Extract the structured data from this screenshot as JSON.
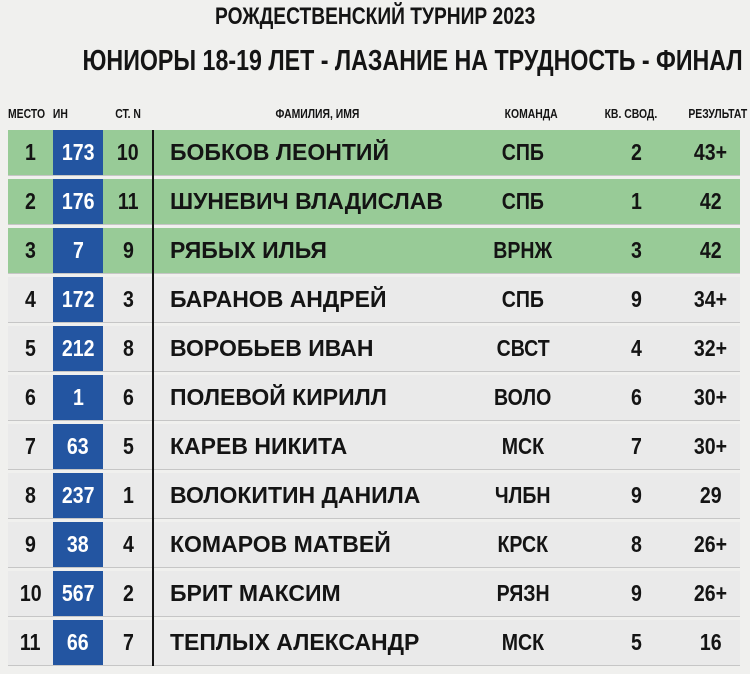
{
  "header": {
    "title": "РОЖДЕСТВЕНСКИЙ ТУРНИР 2023",
    "subtitle": "ЮНИОРЫ 18-19 ЛЕТ - ЛАЗАНИЕ НА ТРУДНОСТЬ - ФИНАЛ"
  },
  "colors": {
    "page_bg": "#f0f0ee",
    "highlight_green": "#98cb97",
    "row_gray": "#eaeaea",
    "bib_blue": "#2355a1",
    "text": "#141414",
    "divider": "#c6c6c6"
  },
  "table": {
    "columns": {
      "place": "МЕСТО",
      "bib": "ИН",
      "start_no": "СТ. N",
      "name": "ФАМИЛИЯ, ИМЯ",
      "team": "КОМАНДА",
      "qual": "КВ. СВОД.",
      "result": "РЕЗУЛЬТАТ"
    },
    "rows": [
      {
        "place": "1",
        "bib": "173",
        "start_no": "10",
        "name": "БОБКОВ ЛЕОНТИЙ",
        "team": "СПБ",
        "qual": "2",
        "result": "43+",
        "highlighted": true
      },
      {
        "place": "2",
        "bib": "176",
        "start_no": "11",
        "name": "ШУНЕВИЧ ВЛАДИСЛАВ",
        "team": "СПБ",
        "qual": "1",
        "result": "42",
        "highlighted": true
      },
      {
        "place": "3",
        "bib": "7",
        "start_no": "9",
        "name": "РЯБЫХ ИЛЬЯ",
        "team": "ВРНЖ",
        "qual": "3",
        "result": "42",
        "highlighted": true
      },
      {
        "place": "4",
        "bib": "172",
        "start_no": "3",
        "name": "БАРАНОВ АНДРЕЙ",
        "team": "СПБ",
        "qual": "9",
        "result": "34+",
        "highlighted": false
      },
      {
        "place": "5",
        "bib": "212",
        "start_no": "8",
        "name": "ВОРОБЬЕВ ИВАН",
        "team": "СВСТ",
        "qual": "4",
        "result": "32+",
        "highlighted": false
      },
      {
        "place": "6",
        "bib": "1",
        "start_no": "6",
        "name": "ПОЛЕВОЙ КИРИЛЛ",
        "team": "ВОЛО",
        "qual": "6",
        "result": "30+",
        "highlighted": false
      },
      {
        "place": "7",
        "bib": "63",
        "start_no": "5",
        "name": "КАРЕВ НИКИТА",
        "team": "МСК",
        "qual": "7",
        "result": "30+",
        "highlighted": false
      },
      {
        "place": "8",
        "bib": "237",
        "start_no": "1",
        "name": "ВОЛОКИТИН ДАНИЛА",
        "team": "ЧЛБН",
        "qual": "9",
        "result": "29",
        "highlighted": false
      },
      {
        "place": "9",
        "bib": "38",
        "start_no": "4",
        "name": "КОМАРОВ МАТВЕЙ",
        "team": "КРСК",
        "qual": "8",
        "result": "26+",
        "highlighted": false
      },
      {
        "place": "10",
        "bib": "567",
        "start_no": "2",
        "name": "БРИТ МАКСИМ",
        "team": "РЯЗН",
        "qual": "9",
        "result": "26+",
        "highlighted": false
      },
      {
        "place": "11",
        "bib": "66",
        "start_no": "7",
        "name": "ТЕПЛЫХ АЛЕКСАНДР",
        "team": "МСК",
        "qual": "5",
        "result": "16",
        "highlighted": false
      }
    ]
  }
}
